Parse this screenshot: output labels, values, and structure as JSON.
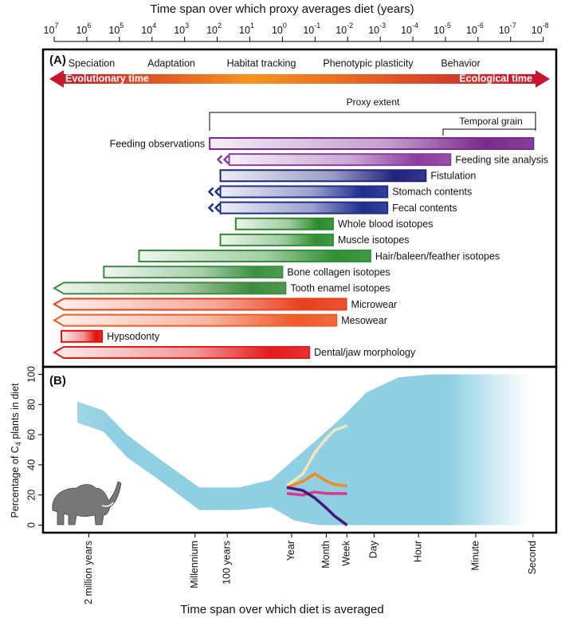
{
  "chart_data": [
    {
      "type": "range",
      "panel_label": "(A)",
      "xlabel": "Time span over which proxy averages diet (years)",
      "log_x": true,
      "xlim": [
        22000000,
        4e-09
      ],
      "xticks": [
        {
          "value": 10000000,
          "label": "10",
          "exponent": "7"
        },
        {
          "value": 1000000,
          "label": "10",
          "exponent": "6"
        },
        {
          "value": 100000,
          "label": "10",
          "exponent": "5"
        },
        {
          "value": 10000,
          "label": "10",
          "exponent": "4"
        },
        {
          "value": 1000,
          "label": "10",
          "exponent": "3"
        },
        {
          "value": 100,
          "label": "10",
          "exponent": "2"
        },
        {
          "value": 10,
          "label": "10",
          "exponent": "1"
        },
        {
          "value": 1,
          "label": "10",
          "exponent": "0"
        },
        {
          "value": 0.1,
          "label": "10",
          "exponent": "-1"
        },
        {
          "value": 0.01,
          "label": "10",
          "exponent": "-2"
        },
        {
          "value": 0.001,
          "label": "10",
          "exponent": "-3"
        },
        {
          "value": 0.0001,
          "label": "10",
          "exponent": "-4"
        },
        {
          "value": 1e-05,
          "label": "10",
          "exponent": "-5"
        },
        {
          "value": 1e-06,
          "label": "10",
          "exponent": "-6"
        },
        {
          "value": 1e-07,
          "label": "10",
          "exponent": "-7"
        },
        {
          "value": 1e-08,
          "label": "10",
          "exponent": "-8"
        }
      ],
      "scales": [
        "Speciation",
        "Adaptation",
        "Habitat tracking",
        "Phenotypic plasticity",
        "Behavior"
      ],
      "time_arrow": [
        "Evolutionary time",
        "Ecological time"
      ],
      "brackets": [
        "Proxy extent",
        "Temporal grain"
      ],
      "categories": [
        "Feeding observations",
        "Feeding site analysis",
        "Fistulation",
        "Stomach contents",
        "Fecal contents",
        "Whole blood isotopes",
        "Muscle isotopes",
        "Hair/baleen/feather isotopes",
        "Bone collagen isotopes",
        "Tooth enamel isotopes",
        "Microwear",
        "Mesowear",
        "Hypsodonty",
        "Dental/jaw morphology"
      ],
      "starts": [
        170,
        43,
        80,
        80,
        80,
        27,
        80,
        25000,
        300000,
        10000000,
        10000000,
        10000000,
        6000000,
        10000000
      ],
      "ends": [
        2e-08,
        7e-06,
        4e-05,
        0.0006,
        0.0006,
        0.028,
        0.028,
        0.002,
        1,
        0.8,
        0.011,
        0.022,
        340000,
        0.15
      ],
      "left_ends": [
        "flat",
        "chevron",
        "flat",
        "chevron",
        "chevron",
        "flat",
        "flat",
        "flat",
        "flat",
        "arrow",
        "arrow",
        "arrow",
        "flat",
        "arrow"
      ],
      "colors": [
        "#7a2a8c",
        "#8a3d9e",
        "#1f237a",
        "#1f2d8c",
        "#1f2d8c",
        "#2b8a2b",
        "#2f8f33",
        "#2f8f33",
        "#3a9040",
        "#3d8b3d",
        "#e8401c",
        "#ef5a2a",
        "#e01010",
        "#e41a1c"
      ]
    },
    {
      "type": "line",
      "panel_label": "(B)",
      "xlabel": "Time span over which diet is averaged",
      "ylabel": [
        "Percentage of C",
        "4",
        " plants in diet"
      ],
      "log_x": true,
      "xlim": [
        53000000,
        6e-09
      ],
      "xticks": [
        {
          "value": 2000000,
          "label": "2 million years"
        },
        {
          "value": 1000,
          "label": "Millennium"
        },
        {
          "value": 100,
          "label": "100 years"
        },
        {
          "value": 1,
          "label": "Year"
        },
        {
          "value": 0.0833,
          "label": "Month"
        },
        {
          "value": 0.0192,
          "label": "Week"
        },
        {
          "value": 0.00274,
          "label": "Day"
        },
        {
          "value": 0.000114,
          "label": "Hour"
        },
        {
          "value": 1.9e-06,
          "label": "Minute"
        },
        {
          "value": 3.17e-08,
          "label": "Second"
        }
      ],
      "ylim": [
        -5,
        105
      ],
      "yticks": [
        0,
        20,
        40,
        60,
        80,
        100
      ],
      "band": {
        "color": "#8ecfe2",
        "x": [
          4600000,
          700000,
          130000,
          13000,
          740,
          43,
          4.4,
          0.8,
          0.14,
          0.026,
          0.0047,
          0.00048,
          4.9e-05,
          4e-08
        ],
        "lower": [
          68,
          62,
          45,
          30,
          10,
          10,
          12,
          3,
          0,
          0,
          0,
          0,
          0,
          0
        ],
        "upper": [
          82,
          76,
          60,
          44,
          25,
          25,
          30,
          44,
          58,
          72,
          88,
          98,
          100,
          100
        ]
      },
      "x": [
        1.4,
        0.45,
        0.19,
        0.08,
        0.046,
        0.019
      ],
      "series": [
        {
          "color": "#f2e6bf",
          "values": [
            26,
            34,
            48,
            58,
            63,
            66
          ]
        },
        {
          "color": "#f28a1e",
          "values": [
            25,
            29,
            34,
            29,
            27,
            26
          ]
        },
        {
          "color": "#e0368c",
          "values": [
            21,
            20,
            22,
            21,
            21,
            21
          ]
        },
        {
          "color": "#4a157a",
          "values": [
            25,
            23,
            18,
            11,
            6,
            0
          ]
        }
      ]
    }
  ]
}
